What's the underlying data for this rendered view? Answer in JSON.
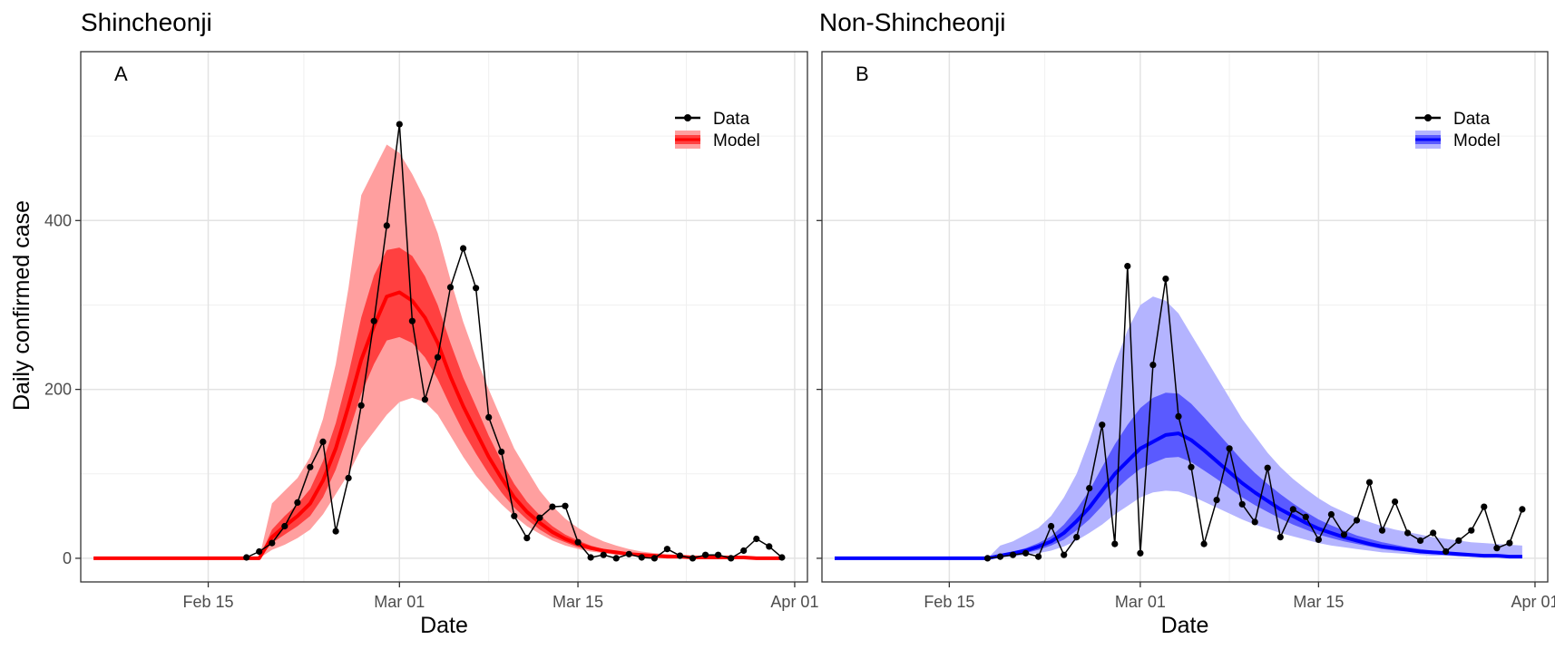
{
  "chart_data": [
    {
      "type": "line",
      "title": "Shincheonji",
      "panel_label": "A",
      "xlabel": "Date",
      "ylabel": "Daily confirmed case",
      "x_ticks": [
        "Feb 15",
        "Mar 01",
        "Mar 15",
        "Apr 01"
      ],
      "x_tick_dates": [
        "2020-02-15",
        "2020-03-01",
        "2020-03-15",
        "2020-04-01"
      ],
      "y_ticks": [
        0,
        200,
        400
      ],
      "xlim": [
        "2020-02-05",
        "2020-04-02"
      ],
      "ylim": [
        -28,
        600
      ],
      "grid": true,
      "legend": {
        "position": "top-right",
        "entries": [
          "Data",
          "Model"
        ]
      },
      "model_color": "#ff0000",
      "band_inner_color": "#ff4040",
      "band_outer_color": "#ff9f9f",
      "series": [
        {
          "name": "Data",
          "x": [
            "2020-02-18",
            "2020-02-19",
            "2020-02-20",
            "2020-02-21",
            "2020-02-22",
            "2020-02-23",
            "2020-02-24",
            "2020-02-25",
            "2020-02-26",
            "2020-02-27",
            "2020-02-28",
            "2020-02-29",
            "2020-03-01",
            "2020-03-02",
            "2020-03-03",
            "2020-03-04",
            "2020-03-05",
            "2020-03-06",
            "2020-03-07",
            "2020-03-08",
            "2020-03-09",
            "2020-03-10",
            "2020-03-11",
            "2020-03-12",
            "2020-03-13",
            "2020-03-14",
            "2020-03-15",
            "2020-03-16",
            "2020-03-17",
            "2020-03-18",
            "2020-03-19",
            "2020-03-20",
            "2020-03-21",
            "2020-03-22",
            "2020-03-23",
            "2020-03-24",
            "2020-03-25",
            "2020-03-26",
            "2020-03-27",
            "2020-03-28",
            "2020-03-29",
            "2020-03-30",
            "2020-03-31"
          ],
          "y": [
            1,
            8,
            18,
            38,
            66,
            108,
            138,
            32,
            95,
            181,
            281,
            394,
            514,
            281,
            188,
            238,
            321,
            367,
            320,
            167,
            126,
            50,
            24,
            48,
            61,
            62,
            19,
            1,
            4,
            0,
            5,
            1,
            0,
            11,
            3,
            0,
            4,
            4,
            0,
            9,
            23,
            14,
            1
          ]
        },
        {
          "name": "Model",
          "x": [
            "2020-02-06",
            "2020-02-07",
            "2020-02-08",
            "2020-02-09",
            "2020-02-10",
            "2020-02-11",
            "2020-02-12",
            "2020-02-13",
            "2020-02-14",
            "2020-02-15",
            "2020-02-16",
            "2020-02-17",
            "2020-02-18",
            "2020-02-19",
            "2020-02-20",
            "2020-02-21",
            "2020-02-22",
            "2020-02-23",
            "2020-02-24",
            "2020-02-25",
            "2020-02-26",
            "2020-02-27",
            "2020-02-28",
            "2020-02-29",
            "2020-03-01",
            "2020-03-02",
            "2020-03-03",
            "2020-03-04",
            "2020-03-05",
            "2020-03-06",
            "2020-03-07",
            "2020-03-08",
            "2020-03-09",
            "2020-03-10",
            "2020-03-11",
            "2020-03-12",
            "2020-03-13",
            "2020-03-14",
            "2020-03-15",
            "2020-03-16",
            "2020-03-17",
            "2020-03-18",
            "2020-03-19",
            "2020-03-20",
            "2020-03-21",
            "2020-03-22",
            "2020-03-23",
            "2020-03-24",
            "2020-03-25",
            "2020-03-26",
            "2020-03-27",
            "2020-03-28",
            "2020-03-29",
            "2020-03-30",
            "2020-03-31"
          ],
          "y": [
            0,
            0,
            0,
            0,
            0,
            0,
            0,
            0,
            0,
            0,
            0,
            0,
            0,
            0,
            25,
            38,
            50,
            65,
            92,
            130,
            180,
            235,
            275,
            310,
            315,
            305,
            285,
            255,
            215,
            180,
            150,
            120,
            95,
            72,
            55,
            42,
            31,
            23,
            17,
            12,
            9,
            7,
            5,
            4,
            3,
            2,
            2,
            1,
            1,
            1,
            1,
            1,
            0,
            0,
            0
          ],
          "inner_low": [
            0,
            0,
            0,
            0,
            0,
            0,
            0,
            0,
            0,
            0,
            0,
            0,
            0,
            0,
            18,
            28,
            38,
            50,
            72,
            105,
            148,
            195,
            230,
            258,
            262,
            255,
            238,
            212,
            180,
            150,
            124,
            100,
            78,
            60,
            46,
            34,
            25,
            19,
            13,
            10,
            7,
            5,
            4,
            3,
            2,
            2,
            1,
            1,
            1,
            0,
            0,
            0,
            0,
            0,
            0
          ],
          "inner_high": [
            0,
            0,
            0,
            0,
            0,
            0,
            0,
            0,
            0,
            0,
            0,
            0,
            0,
            0,
            34,
            50,
            64,
            82,
            115,
            160,
            218,
            285,
            335,
            365,
            368,
            358,
            334,
            300,
            255,
            214,
            180,
            145,
            115,
            88,
            67,
            51,
            38,
            28,
            21,
            15,
            11,
            8,
            6,
            5,
            4,
            3,
            2,
            2,
            1,
            1,
            1,
            1,
            1,
            0,
            0
          ],
          "outer_low": [
            0,
            0,
            0,
            0,
            0,
            0,
            0,
            0,
            0,
            0,
            0,
            0,
            0,
            0,
            10,
            16,
            24,
            34,
            52,
            76,
            100,
            130,
            150,
            170,
            185,
            190,
            185,
            170,
            145,
            120,
            98,
            80,
            64,
            50,
            38,
            29,
            21,
            15,
            11,
            8,
            6,
            4,
            3,
            2,
            2,
            1,
            1,
            1,
            0,
            0,
            0,
            0,
            0,
            0,
            0
          ],
          "outer_high": [
            0,
            0,
            0,
            0,
            0,
            0,
            0,
            0,
            0,
            0,
            0,
            0,
            0,
            0,
            65,
            80,
            95,
            120,
            165,
            230,
            320,
            430,
            460,
            490,
            480,
            455,
            425,
            385,
            330,
            280,
            238,
            200,
            165,
            130,
            105,
            80,
            62,
            47,
            36,
            27,
            20,
            15,
            11,
            8,
            6,
            5,
            4,
            3,
            2,
            2,
            1,
            1,
            1,
            0,
            0
          ]
        }
      ]
    },
    {
      "type": "line",
      "title": "Non-Shincheonji",
      "panel_label": "B",
      "xlabel": "Date",
      "ylabel": "",
      "x_ticks": [
        "Feb 15",
        "Mar 01",
        "Mar 15",
        "Apr 01"
      ],
      "x_tick_dates": [
        "2020-02-15",
        "2020-03-01",
        "2020-03-15",
        "2020-04-01"
      ],
      "y_ticks": [
        0,
        200,
        400
      ],
      "xlim": [
        "2020-02-05",
        "2020-04-02"
      ],
      "ylim": [
        -28,
        600
      ],
      "grid": true,
      "legend": {
        "position": "top-right",
        "entries": [
          "Data",
          "Model"
        ]
      },
      "model_color": "#0000ff",
      "band_inner_color": "#5a5aff",
      "band_outer_color": "#b4b4ff",
      "series": [
        {
          "name": "Data",
          "x": [
            "2020-02-18",
            "2020-02-19",
            "2020-02-20",
            "2020-02-21",
            "2020-02-22",
            "2020-02-23",
            "2020-02-24",
            "2020-02-25",
            "2020-02-26",
            "2020-02-27",
            "2020-02-28",
            "2020-02-29",
            "2020-03-01",
            "2020-03-02",
            "2020-03-03",
            "2020-03-04",
            "2020-03-05",
            "2020-03-06",
            "2020-03-07",
            "2020-03-08",
            "2020-03-09",
            "2020-03-10",
            "2020-03-11",
            "2020-03-12",
            "2020-03-13",
            "2020-03-14",
            "2020-03-15",
            "2020-03-16",
            "2020-03-17",
            "2020-03-18",
            "2020-03-19",
            "2020-03-20",
            "2020-03-21",
            "2020-03-22",
            "2020-03-23",
            "2020-03-24",
            "2020-03-25",
            "2020-03-26",
            "2020-03-27",
            "2020-03-28",
            "2020-03-29",
            "2020-03-30",
            "2020-03-31"
          ],
          "y": [
            0,
            2,
            4,
            6,
            2,
            38,
            4,
            25,
            83,
            158,
            17,
            346,
            6,
            229,
            331,
            168,
            108,
            17,
            69,
            130,
            64,
            43,
            107,
            25,
            58,
            49,
            22,
            52,
            28,
            45,
            90,
            33,
            67,
            30,
            21,
            30,
            8,
            21,
            33,
            61,
            12,
            18,
            58
          ]
        },
        {
          "name": "Model",
          "x": [
            "2020-02-06",
            "2020-02-07",
            "2020-02-08",
            "2020-02-09",
            "2020-02-10",
            "2020-02-11",
            "2020-02-12",
            "2020-02-13",
            "2020-02-14",
            "2020-02-15",
            "2020-02-16",
            "2020-02-17",
            "2020-02-18",
            "2020-02-19",
            "2020-02-20",
            "2020-02-21",
            "2020-02-22",
            "2020-02-23",
            "2020-02-24",
            "2020-02-25",
            "2020-02-26",
            "2020-02-27",
            "2020-02-28",
            "2020-02-29",
            "2020-03-01",
            "2020-03-02",
            "2020-03-03",
            "2020-03-04",
            "2020-03-05",
            "2020-03-06",
            "2020-03-07",
            "2020-03-08",
            "2020-03-09",
            "2020-03-10",
            "2020-03-11",
            "2020-03-12",
            "2020-03-13",
            "2020-03-14",
            "2020-03-15",
            "2020-03-16",
            "2020-03-17",
            "2020-03-18",
            "2020-03-19",
            "2020-03-20",
            "2020-03-21",
            "2020-03-22",
            "2020-03-23",
            "2020-03-24",
            "2020-03-25",
            "2020-03-26",
            "2020-03-27",
            "2020-03-28",
            "2020-03-29",
            "2020-03-30",
            "2020-03-31"
          ],
          "y": [
            0,
            0,
            0,
            0,
            0,
            0,
            0,
            0,
            0,
            0,
            0,
            0,
            0,
            3,
            6,
            9,
            14,
            20,
            30,
            44,
            60,
            80,
            100,
            115,
            130,
            138,
            146,
            148,
            140,
            128,
            115,
            102,
            89,
            78,
            68,
            58,
            50,
            42,
            35,
            30,
            25,
            21,
            17,
            14,
            12,
            10,
            8,
            7,
            6,
            5,
            4,
            3,
            3,
            2,
            2
          ],
          "inner_low": [
            0,
            0,
            0,
            0,
            0,
            0,
            0,
            0,
            0,
            0,
            0,
            0,
            0,
            2,
            4,
            6,
            10,
            15,
            22,
            33,
            46,
            62,
            80,
            94,
            106,
            113,
            119,
            120,
            114,
            104,
            94,
            83,
            72,
            63,
            55,
            47,
            40,
            34,
            28,
            24,
            20,
            17,
            14,
            11,
            9,
            8,
            6,
            5,
            4,
            4,
            3,
            2,
            2,
            1,
            1
          ],
          "inner_high": [
            0,
            0,
            0,
            0,
            0,
            0,
            0,
            0,
            0,
            0,
            0,
            0,
            0,
            4,
            8,
            12,
            18,
            26,
            40,
            58,
            80,
            108,
            135,
            158,
            178,
            190,
            196,
            195,
            183,
            167,
            150,
            133,
            116,
            101,
            88,
            76,
            65,
            55,
            46,
            39,
            33,
            27,
            23,
            19,
            16,
            13,
            11,
            9,
            8,
            6,
            5,
            4,
            4,
            3,
            3
          ],
          "outer_low": [
            0,
            0,
            0,
            0,
            0,
            0,
            0,
            0,
            0,
            0,
            0,
            0,
            0,
            1,
            2,
            4,
            6,
            9,
            14,
            21,
            30,
            40,
            52,
            62,
            72,
            78,
            80,
            79,
            74,
            67,
            60,
            53,
            46,
            40,
            35,
            30,
            26,
            22,
            18,
            15,
            13,
            11,
            9,
            7,
            6,
            5,
            4,
            3,
            3,
            2,
            2,
            1,
            1,
            1,
            0
          ],
          "outer_high": [
            0,
            0,
            0,
            0,
            0,
            0,
            0,
            0,
            0,
            0,
            0,
            0,
            0,
            15,
            20,
            28,
            36,
            50,
            72,
            100,
            140,
            185,
            230,
            270,
            300,
            310,
            305,
            290,
            265,
            240,
            215,
            190,
            165,
            145,
            125,
            108,
            94,
            82,
            71,
            62,
            55,
            48,
            43,
            38,
            34,
            31,
            28,
            25,
            23,
            21,
            19,
            18,
            17,
            16,
            15
          ]
        }
      ]
    }
  ]
}
